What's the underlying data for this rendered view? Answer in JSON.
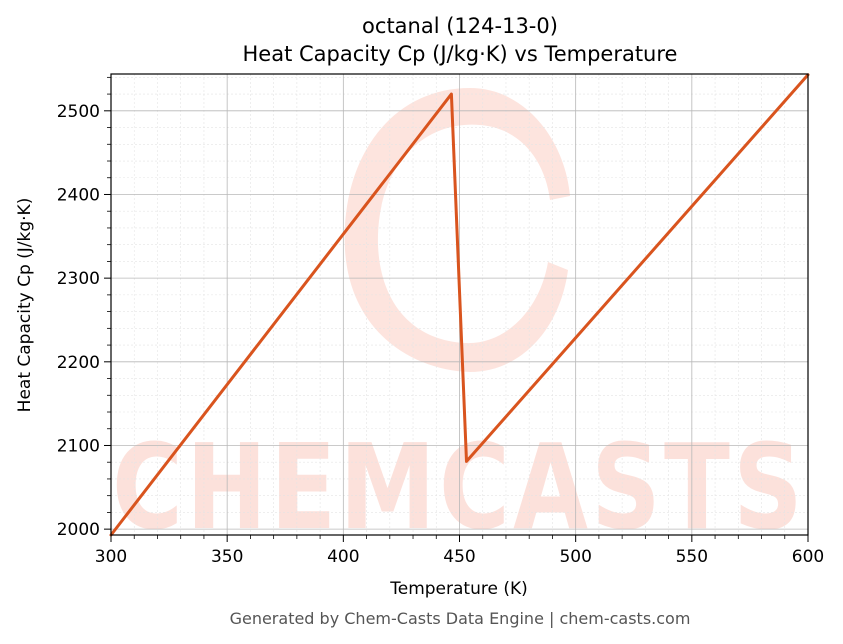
{
  "chart_data": {
    "type": "line",
    "title": "octanal (124-13-0)",
    "subtitle": "Heat Capacity Cp (J/kg·K) vs Temperature",
    "xlabel": "Temperature (K)",
    "ylabel": "Heat Capacity Cp (J/kg·K)",
    "xlim": [
      300,
      600
    ],
    "ylim": [
      1993,
      2544
    ],
    "x_ticks": [
      300,
      350,
      400,
      450,
      500,
      550,
      600
    ],
    "y_ticks": [
      2000,
      2100,
      2200,
      2300,
      2400,
      2500
    ],
    "grid": true,
    "series": [
      {
        "x": [
          300,
          446.5,
          453,
          600
        ],
        "values": [
          1993,
          2520,
          2081,
          2543
        ],
        "color": "#d9541e"
      }
    ]
  },
  "watermark": {
    "text": "CHEMCASTS",
    "color": "#fcd8d0"
  },
  "footer": "Generated by Chem-Casts Data Engine | chem-casts.com"
}
